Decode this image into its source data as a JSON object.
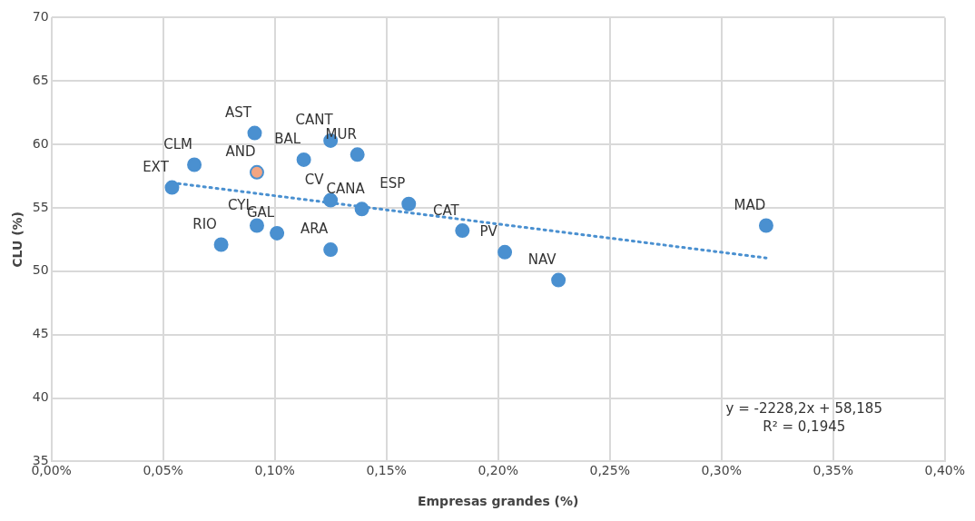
{
  "chart_data": {
    "type": "scatter",
    "xlabel": "Empresas grandes (%)",
    "ylabel": "CLU (%)",
    "xlim": [
      0,
      0.4
    ],
    "xticks": [
      {
        "value": 0,
        "label": "0,00%"
      },
      {
        "value": 0.05,
        "label": "0,05%"
      },
      {
        "value": 0.1,
        "label": "0,10%"
      },
      {
        "value": 0.15,
        "label": "0,15%"
      },
      {
        "value": 0.2,
        "label": "0,20%"
      },
      {
        "value": 0.25,
        "label": "0,25%"
      },
      {
        "value": 0.3,
        "label": "0,30%"
      },
      {
        "value": 0.35,
        "label": "0,35%"
      },
      {
        "value": 0.4,
        "label": "0,40%"
      }
    ],
    "ylim": [
      35,
      70
    ],
    "yticks": [
      35,
      40,
      45,
      50,
      55,
      60,
      65,
      70
    ],
    "grid": true,
    "legend": false,
    "marker": "circle",
    "series": [
      {
        "color": "#4a90d0",
        "x": [
          0.054,
          0.064,
          0.091,
          0.092,
          0.092,
          0.076,
          0.101,
          0.113,
          0.125,
          0.137,
          0.125,
          0.139,
          0.125,
          0.16,
          0.184,
          0.203,
          0.227,
          0.32
        ],
        "values": [
          56.6,
          58.4,
          60.9,
          57.8,
          53.6,
          52.1,
          53.0,
          58.8,
          60.3,
          59.2,
          55.6,
          54.9,
          51.7,
          55.3,
          53.2,
          51.5,
          49.3,
          53.6
        ],
        "colors": [
          "#4a90d0",
          "#4a90d0",
          "#4a90d0",
          "#f4a582",
          "#4a90d0",
          "#4a90d0",
          "#4a90d0",
          "#4a90d0",
          "#4a90d0",
          "#4a90d0",
          "#4a90d0",
          "#4a90d0",
          "#4a90d0",
          "#4a90d0",
          "#4a90d0",
          "#4a90d0",
          "#4a90d0",
          "#4a90d0"
        ],
        "value_labels": [
          "EXT",
          "CLM",
          "AST",
          "AND",
          "CYL",
          "RIO",
          "GAL",
          "BAL",
          "CANT",
          "MUR",
          "CV",
          "CANA",
          "ARA",
          "ESP",
          "CAT",
          "PV",
          "NAV",
          "MAD"
        ]
      },
      {
        "type": "line",
        "color": "#4a90d0",
        "x": [
          0.054,
          0.32
        ],
        "values": [
          56.98,
          51.05
        ],
        "line_style": "dotted",
        "marker": "none"
      }
    ],
    "annotations": [
      "y = -2228,2x + 58,185",
      "R² = 0,1945"
    ]
  }
}
